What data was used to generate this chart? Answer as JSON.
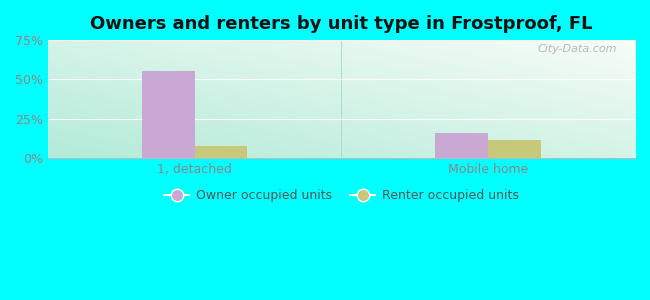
{
  "title": "Owners and renters by unit type in Frostproof, FL",
  "categories": [
    "1, detached",
    "Mobile home"
  ],
  "owner_values": [
    55.5,
    16.0
  ],
  "renter_values": [
    7.5,
    11.5
  ],
  "owner_color": "#c9a8d4",
  "renter_color": "#c8c87a",
  "ylim": [
    0,
    75
  ],
  "yticks": [
    0,
    25,
    50,
    75
  ],
  "yticklabels": [
    "0%",
    "25%",
    "50%",
    "75%"
  ],
  "bar_width": 0.18,
  "outer_bg": "#00ffff",
  "plot_bg_topleft": "#b0e8d8",
  "plot_bg_bottomright": "#f0f5f0",
  "watermark": "City-Data.com",
  "legend_owner": "Owner occupied units",
  "legend_renter": "Renter occupied units",
  "grid_color": "#dddddd",
  "tick_color": "#888888",
  "title_fontsize": 13,
  "tick_fontsize": 9
}
